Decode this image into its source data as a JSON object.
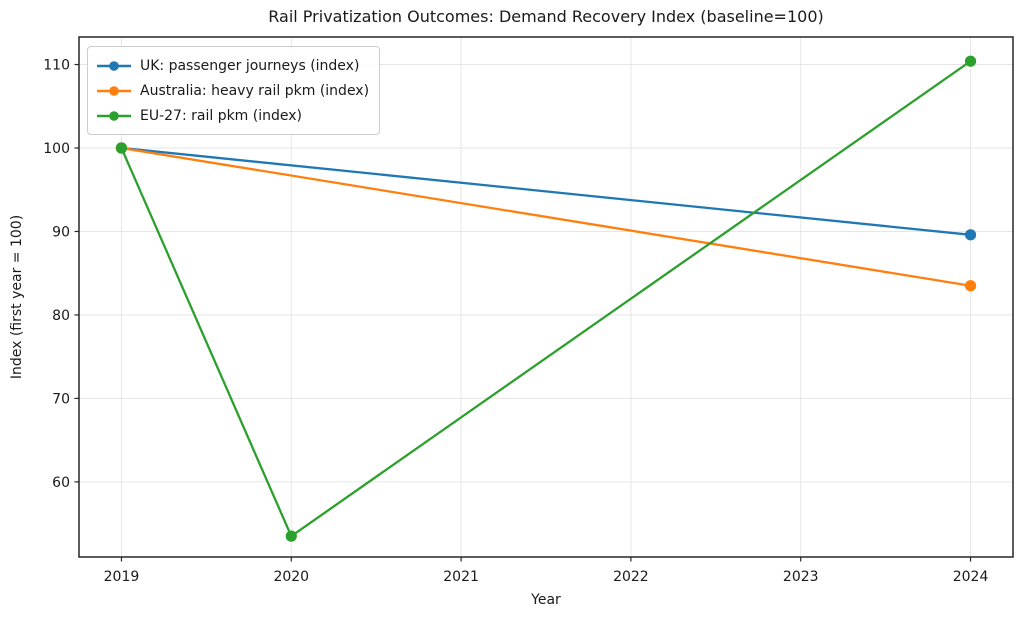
{
  "chart_data": {
    "type": "line",
    "title": "Rail Privatization Outcomes: Demand Recovery Index (baseline=100)",
    "xlabel": "Year",
    "ylabel": "Index (first year = 100)",
    "xlim": [
      2018.75,
      2024.25
    ],
    "ylim": [
      51.0,
      113.3
    ],
    "xticks": [
      2019,
      2020,
      2021,
      2022,
      2023,
      2024
    ],
    "yticks": [
      60,
      70,
      80,
      90,
      100,
      110
    ],
    "grid": true,
    "grid_color": "#e6e6e6",
    "frame_color": "#262626",
    "text_color": "#1a1a1a",
    "legend_position": "upper left",
    "series": [
      {
        "name": "UK: passenger journeys (index)",
        "color": "#1f77b4",
        "x": [
          2019,
          2024
        ],
        "y": [
          100,
          89.6
        ]
      },
      {
        "name": "Australia: heavy rail pkm (index)",
        "color": "#ff7f0e",
        "x": [
          2019,
          2024
        ],
        "y": [
          100,
          83.5
        ]
      },
      {
        "name": "EU-27: rail pkm (index)",
        "color": "#2ca02c",
        "x": [
          2019,
          2020,
          2024
        ],
        "y": [
          100,
          53.5,
          110.4
        ]
      }
    ]
  }
}
